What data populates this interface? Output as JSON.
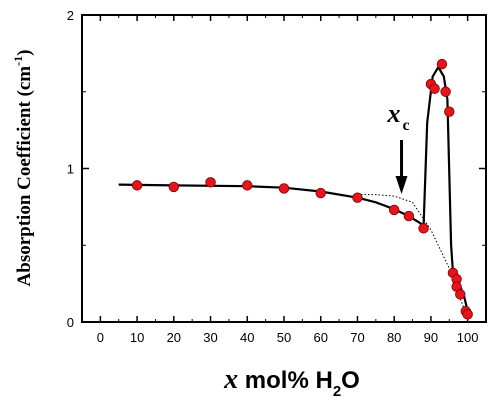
{
  "chart_data": {
    "type": "scatter",
    "xlim": [
      -5,
      105
    ],
    "ylim": [
      0,
      2
    ],
    "x_ticks": [
      0,
      10,
      20,
      30,
      40,
      50,
      60,
      70,
      80,
      90,
      100
    ],
    "y_ticks": [
      0,
      1,
      2
    ],
    "ylabel": "Absorption Coefficient (cm",
    "ylabel_sup": "-1",
    "ylabel_close": ")",
    "xlabel_var": "x",
    "xlabel_mid": " mol% H",
    "xlabel_sub": "2",
    "xlabel_end": "O",
    "annotation": {
      "var": "x",
      "sub": "c",
      "x": 82
    },
    "points": [
      {
        "x": 10,
        "y": 0.89
      },
      {
        "x": 20,
        "y": 0.88
      },
      {
        "x": 30,
        "y": 0.91
      },
      {
        "x": 40,
        "y": 0.89
      },
      {
        "x": 50,
        "y": 0.87
      },
      {
        "x": 60,
        "y": 0.84
      },
      {
        "x": 70,
        "y": 0.81
      },
      {
        "x": 80,
        "y": 0.73
      },
      {
        "x": 84,
        "y": 0.69
      },
      {
        "x": 88,
        "y": 0.61
      },
      {
        "x": 90,
        "y": 1.55
      },
      {
        "x": 91,
        "y": 1.52
      },
      {
        "x": 93,
        "y": 1.68
      },
      {
        "x": 94,
        "y": 1.5
      },
      {
        "x": 95,
        "y": 1.37
      },
      {
        "x": 96,
        "y": 0.32
      },
      {
        "x": 97,
        "y": 0.28
      },
      {
        "x": 97,
        "y": 0.23
      },
      {
        "x": 98,
        "y": 0.18
      },
      {
        "x": 99.5,
        "y": 0.07
      },
      {
        "x": 100,
        "y": 0.05
      }
    ],
    "fit_curve": [
      [
        5,
        0.895
      ],
      [
        20,
        0.89
      ],
      [
        40,
        0.885
      ],
      [
        50,
        0.875
      ],
      [
        60,
        0.85
      ],
      [
        70,
        0.81
      ],
      [
        75,
        0.78
      ],
      [
        80,
        0.735
      ],
      [
        84,
        0.69
      ],
      [
        88,
        0.63
      ],
      [
        89,
        1.3
      ],
      [
        90.5,
        1.6
      ],
      [
        92,
        1.66
      ],
      [
        93.5,
        1.6
      ],
      [
        94.5,
        1.45
      ],
      [
        95.5,
        0.5
      ],
      [
        96,
        0.33
      ],
      [
        97.5,
        0.26
      ],
      [
        99,
        0.17
      ],
      [
        100.5,
        0.02
      ]
    ],
    "dotted_curve": [
      [
        70,
        0.83
      ],
      [
        75,
        0.83
      ],
      [
        80,
        0.82
      ],
      [
        85,
        0.78
      ],
      [
        90,
        0.6
      ],
      [
        93,
        0.45
      ],
      [
        96,
        0.3
      ],
      [
        98,
        0.15
      ],
      [
        100,
        0.03
      ]
    ],
    "colors": {
      "point": "#e8141c",
      "point_edge": "#7a0000",
      "line": "#000000",
      "axis": "#000000"
    }
  }
}
